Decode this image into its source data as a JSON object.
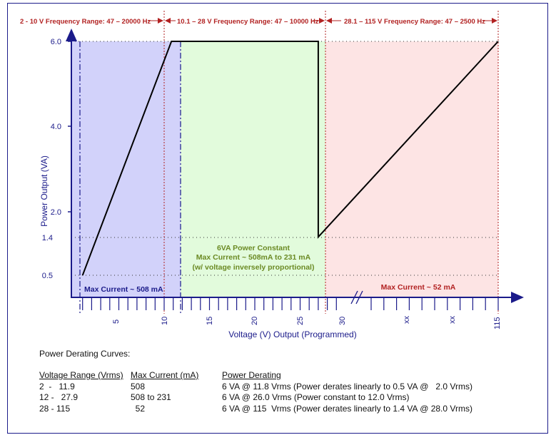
{
  "chart_data": {
    "type": "line",
    "xlabel": "Voltage (V) Output (Programmed)",
    "ylabel": "Power Output (VA)",
    "yticks": [
      "6.0",
      "4.0",
      "2.0",
      "1.4",
      "0.5"
    ],
    "xticks": [
      "5",
      "10",
      "15",
      "20",
      "25",
      "30",
      "xx",
      "xx",
      "115"
    ],
    "ylim": [
      0,
      6.6
    ],
    "regions": [
      {
        "label": "2 - 10 V Frequency Range: 47 – 20000 Hz",
        "color": "#d2d2fa"
      },
      {
        "label": "10.1 – 28 V Frequency Range: 47 – 10000 Hz",
        "color": "#e2fbdc"
      },
      {
        "label": "28.1 – 115 V Frequency Range: 47 – 2500 Hz",
        "color": "#fde4e4"
      }
    ],
    "annotations": {
      "low": "Max Current ~ 508 mA",
      "mid": [
        "6VA Power Constant",
        "Max Current ~ 508mA to 231 mA",
        "(w/ voltage inversely proportional)"
      ],
      "high": "Max Current ~ 52 mA"
    },
    "series": [
      {
        "points": [
          [
            2,
            0.5
          ],
          [
            11.8,
            6.0
          ],
          [
            28,
            6.0
          ],
          [
            28,
            1.4
          ],
          [
            115,
            6.0
          ]
        ]
      }
    ]
  },
  "table": {
    "title": "Power Derating Curves:",
    "headers": [
      "Voltage Range (Vrms)",
      "Max Current (mA)",
      "Power Derating"
    ],
    "rows": [
      [
        "2  -   11.9",
        "508",
        "6 VA @ 11.8 Vrms (Power derates linearly to 0.5 VA @   2.0 Vrms)"
      ],
      [
        "12 -   27.9",
        "508 to 231",
        "6 VA @ 26.0 Vrms (Power constant to 12.0 Vrms)"
      ],
      [
        "28 - 115",
        "  52",
        "6 VA @ 115  Vrms (Power derates linearly to 1.4 VA @ 28.0 Vrms)"
      ]
    ]
  }
}
